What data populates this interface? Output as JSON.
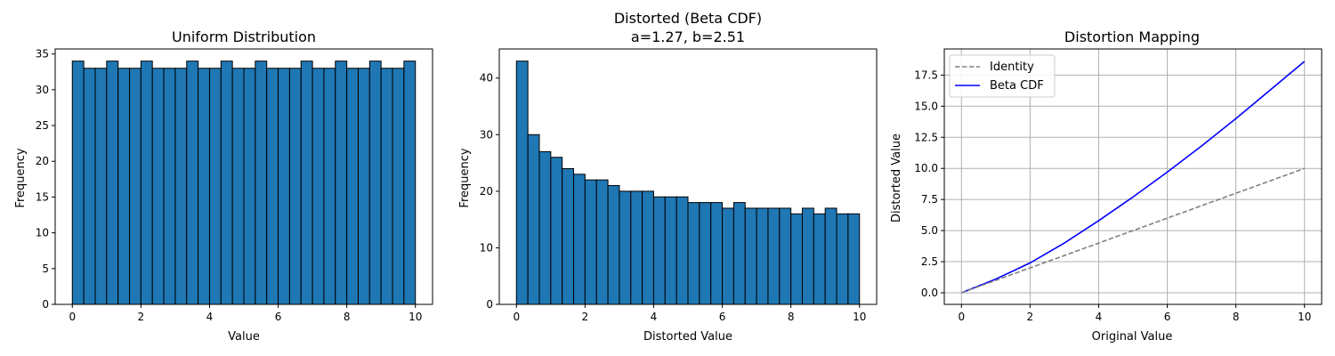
{
  "colors": {
    "bar_fill": "#1f77b4",
    "bar_edge": "#000000",
    "identity_line": "#808080",
    "beta_line": "#0000ff",
    "grid": "#b0b0b0"
  },
  "chart_data": [
    {
      "type": "bar",
      "title": "Uniform Distribution",
      "xlabel": "Value",
      "ylabel": "Frequency",
      "xlim": [
        -0.5,
        10.5
      ],
      "ylim": [
        0,
        35.7
      ],
      "xticks": [
        0,
        2,
        4,
        6,
        8,
        10
      ],
      "yticks": [
        0,
        5,
        10,
        15,
        20,
        25,
        30,
        35
      ],
      "ytick_labels": [
        "0",
        "5",
        "10",
        "15",
        "20",
        "25",
        "30",
        "35"
      ],
      "grid": false,
      "bin_range": [
        0,
        10
      ],
      "values": [
        34,
        33,
        33,
        34,
        33,
        33,
        34,
        33,
        33,
        33,
        34,
        33,
        33,
        34,
        33,
        33,
        34,
        33,
        33,
        33,
        34,
        33,
        33,
        34,
        33,
        33,
        34,
        33,
        33,
        34
      ]
    },
    {
      "type": "bar",
      "title": "Distorted (Beta CDF)",
      "subtitle": "a=1.27, b=2.51",
      "xlabel": "Distorted Value",
      "ylabel": "Frequency",
      "xlim": [
        -0.5,
        10.5
      ],
      "ylim": [
        0,
        45.15
      ],
      "xticks": [
        0,
        2,
        4,
        6,
        8,
        10
      ],
      "yticks": [
        0,
        10,
        20,
        30,
        40
      ],
      "ytick_labels": [
        "0",
        "10",
        "20",
        "30",
        "40"
      ],
      "grid": false,
      "bin_range": [
        0,
        10
      ],
      "values": [
        43,
        30,
        27,
        26,
        24,
        23,
        22,
        22,
        21,
        20,
        20,
        20,
        19,
        19,
        19,
        18,
        18,
        18,
        17,
        18,
        17,
        17,
        17,
        17,
        16,
        17,
        16,
        17,
        16,
        16
      ]
    },
    {
      "type": "line",
      "title": "Distortion Mapping",
      "xlabel": "Original Value",
      "ylabel": "Distorted Value",
      "xlim": [
        -0.5,
        10.5
      ],
      "ylim": [
        -0.93,
        19.6
      ],
      "xticks": [
        0,
        2,
        4,
        6,
        8,
        10
      ],
      "yticks": [
        0,
        2.5,
        5,
        7.5,
        10,
        12.5,
        15,
        17.5
      ],
      "ytick_labels": [
        "0.0",
        "2.5",
        "5.0",
        "7.5",
        "10.0",
        "12.5",
        "15.0",
        "17.5"
      ],
      "grid": true,
      "legend_position": "top-left",
      "x": [
        0,
        1,
        2,
        3,
        4,
        5,
        6,
        7,
        8,
        9,
        10
      ],
      "series": [
        {
          "name": "Identity",
          "style": "dashed",
          "values": [
            0,
            1,
            2,
            3,
            4,
            5,
            6,
            7,
            8,
            9,
            10
          ]
        },
        {
          "name": "Beta CDF",
          "style": "solid",
          "values": [
            0,
            1.1,
            2.4,
            4.0,
            5.8,
            7.7,
            9.7,
            11.8,
            14.0,
            16.3,
            18.6
          ]
        }
      ]
    }
  ]
}
